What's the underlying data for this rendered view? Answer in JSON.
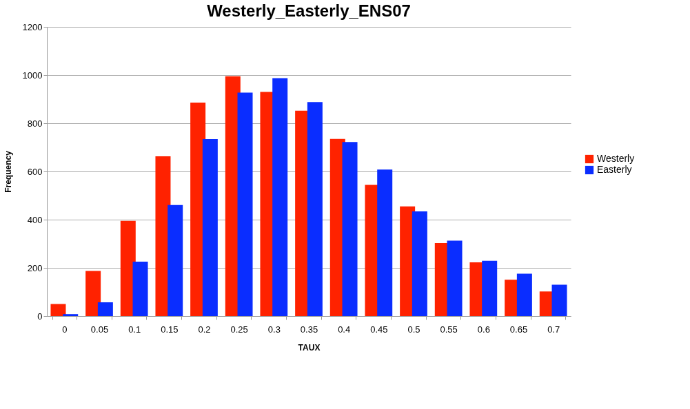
{
  "chart_data": {
    "type": "bar",
    "title": "Westerly_Easterly_ENS07",
    "xlabel": "TAUX",
    "ylabel": "Frequency",
    "categories": [
      "0",
      "0.05",
      "0.1",
      "0.15",
      "0.2",
      "0.25",
      "0.3",
      "0.35",
      "0.4",
      "0.45",
      "0.5",
      "0.55",
      "0.6",
      "0.65",
      "0.7"
    ],
    "series": [
      {
        "name": "Westerly",
        "color": "#ff2200",
        "values": [
          50,
          187,
          395,
          663,
          886,
          995,
          930,
          852,
          735,
          544,
          455,
          303,
          223,
          151,
          102
        ]
      },
      {
        "name": "Easterly",
        "color": "#0a2dff",
        "values": [
          8,
          57,
          226,
          461,
          734,
          927,
          987,
          888,
          722,
          608,
          434,
          313,
          229,
          176,
          130
        ]
      }
    ],
    "ylim": [
      0,
      1200
    ],
    "yticks": [
      0,
      200,
      400,
      600,
      800,
      1000,
      1200
    ],
    "grid": "y",
    "legend": "right"
  }
}
